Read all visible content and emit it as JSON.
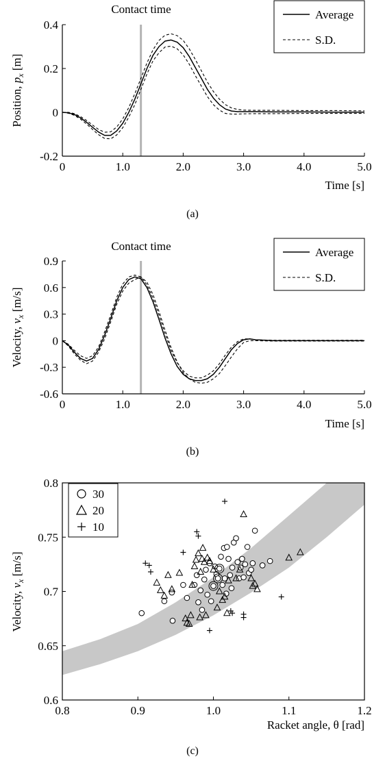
{
  "chart_data": [
    {
      "type": "line",
      "caption": "(a)",
      "annotation": "Contact time",
      "contact_time": 1.3,
      "xlabel": "Time [s]",
      "ylabel_parts": [
        "Position, ",
        "p",
        "x",
        " [m]"
      ],
      "xlim": [
        0,
        5
      ],
      "ylim": [
        -0.2,
        0.4
      ],
      "xticks": [
        0,
        1,
        2,
        3,
        4,
        5
      ],
      "xtick_labels": [
        "0",
        "1.0",
        "2.0",
        "3.0",
        "4.0",
        "5.0"
      ],
      "yticks": [
        -0.2,
        0,
        0.2,
        0.4
      ],
      "ytick_labels": [
        "-0.2",
        "0",
        "0.2",
        "0.4"
      ],
      "legend": {
        "position": "top-right",
        "entries": [
          "Average",
          "S.D."
        ]
      },
      "x": [
        0,
        0.1,
        0.2,
        0.3,
        0.4,
        0.5,
        0.6,
        0.7,
        0.8,
        0.9,
        1.0,
        1.1,
        1.2,
        1.3,
        1.4,
        1.5,
        1.6,
        1.7,
        1.8,
        1.9,
        2.0,
        2.1,
        2.2,
        2.3,
        2.4,
        2.5,
        2.6,
        2.7,
        2.8,
        2.9,
        3.0,
        3.2,
        3.5,
        4.0,
        4.5,
        5.0
      ],
      "series": [
        {
          "name": "Average",
          "style": "solid",
          "values": [
            0,
            -0.002,
            -0.01,
            -0.025,
            -0.045,
            -0.068,
            -0.09,
            -0.105,
            -0.105,
            -0.085,
            -0.05,
            0.0,
            0.06,
            0.13,
            0.2,
            0.26,
            0.3,
            0.325,
            0.33,
            0.32,
            0.295,
            0.255,
            0.205,
            0.155,
            0.105,
            0.065,
            0.035,
            0.015,
            0.006,
            0.003,
            0.003,
            0.003,
            0.002,
            0.002,
            0.001,
            0.001
          ]
        },
        {
          "name": "S.D.",
          "style": "dashed",
          "values": [
            0,
            0.0,
            -0.006,
            -0.019,
            -0.037,
            -0.058,
            -0.078,
            -0.091,
            -0.089,
            -0.067,
            -0.03,
            0.022,
            0.085,
            0.155,
            0.225,
            0.285,
            0.328,
            0.352,
            0.358,
            0.35,
            0.328,
            0.29,
            0.242,
            0.19,
            0.138,
            0.095,
            0.06,
            0.035,
            0.02,
            0.013,
            0.01,
            0.009,
            0.009,
            0.008,
            0.008,
            0.007
          ]
        },
        {
          "name": "S.D.",
          "style": "dashed",
          "values": [
            0,
            -0.004,
            -0.014,
            -0.031,
            -0.053,
            -0.078,
            -0.102,
            -0.119,
            -0.121,
            -0.103,
            -0.07,
            -0.022,
            0.035,
            0.105,
            0.175,
            0.235,
            0.272,
            0.298,
            0.302,
            0.29,
            0.262,
            0.22,
            0.168,
            0.12,
            0.072,
            0.035,
            0.01,
            -0.005,
            -0.008,
            -0.008,
            -0.007,
            -0.006,
            -0.006,
            -0.005,
            -0.005,
            -0.005
          ]
        }
      ]
    },
    {
      "type": "line",
      "caption": "(b)",
      "annotation": "Contact time",
      "contact_time": 1.3,
      "xlabel": "Time [s]",
      "ylabel_parts": [
        "Velocity, ",
        "v",
        "x",
        " [m/s]"
      ],
      "xlim": [
        0,
        5
      ],
      "ylim": [
        -0.6,
        0.9
      ],
      "xticks": [
        0,
        1,
        2,
        3,
        4,
        5
      ],
      "xtick_labels": [
        "0",
        "1.0",
        "2.0",
        "3.0",
        "4.0",
        "5.0"
      ],
      "yticks": [
        -0.6,
        -0.3,
        0,
        0.3,
        0.6,
        0.9
      ],
      "ytick_labels": [
        "-0.6",
        "-0.3",
        "0",
        "0.3",
        "0.6",
        "0.9"
      ],
      "legend": {
        "position": "top-right",
        "entries": [
          "Average",
          "S.D."
        ]
      },
      "x": [
        0,
        0.1,
        0.2,
        0.3,
        0.4,
        0.5,
        0.6,
        0.7,
        0.8,
        0.9,
        1.0,
        1.1,
        1.2,
        1.3,
        1.4,
        1.5,
        1.6,
        1.7,
        1.8,
        1.9,
        2.0,
        2.1,
        2.2,
        2.3,
        2.4,
        2.5,
        2.6,
        2.7,
        2.8,
        2.9,
        3.0,
        3.1,
        3.2,
        3.5,
        4.0,
        4.5,
        5.0
      ],
      "series": [
        {
          "name": "Average",
          "style": "solid",
          "values": [
            0,
            -0.05,
            -0.13,
            -0.2,
            -0.23,
            -0.2,
            -0.1,
            0.06,
            0.25,
            0.45,
            0.6,
            0.69,
            0.72,
            0.7,
            0.6,
            0.44,
            0.24,
            0.03,
            -0.15,
            -0.29,
            -0.38,
            -0.43,
            -0.45,
            -0.45,
            -0.43,
            -0.38,
            -0.3,
            -0.2,
            -0.1,
            -0.03,
            0.01,
            0.02,
            0.01,
            0.0,
            0.0,
            0.0,
            0.0
          ]
        },
        {
          "name": "S.D.",
          "style": "dashed",
          "values": [
            0,
            -0.04,
            -0.11,
            -0.17,
            -0.2,
            -0.17,
            -0.07,
            0.1,
            0.29,
            0.49,
            0.64,
            0.72,
            0.74,
            0.72,
            0.63,
            0.48,
            0.29,
            0.08,
            -0.11,
            -0.25,
            -0.34,
            -0.4,
            -0.42,
            -0.42,
            -0.39,
            -0.34,
            -0.26,
            -0.16,
            -0.07,
            -0.01,
            0.02,
            0.02,
            0.01,
            0.005,
            0.005,
            0.005,
            0.005
          ]
        },
        {
          "name": "S.D.",
          "style": "dashed",
          "values": [
            0,
            -0.06,
            -0.15,
            -0.22,
            -0.26,
            -0.23,
            -0.13,
            0.02,
            0.21,
            0.41,
            0.56,
            0.65,
            0.69,
            0.72,
            0.66,
            0.52,
            0.33,
            0.12,
            -0.08,
            -0.24,
            -0.36,
            -0.43,
            -0.47,
            -0.48,
            -0.47,
            -0.43,
            -0.37,
            -0.28,
            -0.18,
            -0.09,
            -0.02,
            0.0,
            0.0,
            -0.005,
            -0.005,
            -0.005,
            -0.005
          ]
        }
      ]
    },
    {
      "type": "scatter",
      "caption": "(c)",
      "xlabel": "Racket angle, θ [rad]",
      "ylabel_parts": [
        "Velocity, ",
        "v",
        "x",
        " [m/s]"
      ],
      "xlim": [
        0.8,
        1.2
      ],
      "ylim": [
        0.6,
        0.8
      ],
      "xticks": [
        0.8,
        0.9,
        1.0,
        1.1,
        1.2
      ],
      "xtick_labels": [
        "0.8",
        "0.9",
        "1.0",
        "1.1",
        "1.2"
      ],
      "yticks": [
        0.6,
        0.65,
        0.7,
        0.75,
        0.8
      ],
      "ytick_labels": [
        "0.6",
        "0.65",
        "0.7",
        "0.75",
        "0.8"
      ],
      "legend": {
        "position": "top-left",
        "entries": [
          "30",
          "20",
          "10"
        ]
      },
      "band": {
        "x": [
          0.8,
          0.85,
          0.9,
          0.95,
          1.0,
          1.05,
          1.1,
          1.15,
          1.2
        ],
        "upper": [
          0.645,
          0.656,
          0.67,
          0.69,
          0.713,
          0.74,
          0.77,
          0.8,
          0.8
        ],
        "lower": [
          0.623,
          0.633,
          0.645,
          0.66,
          0.678,
          0.699,
          0.722,
          0.75,
          0.78
        ]
      },
      "series": [
        {
          "name": "30",
          "marker": "circle",
          "points": [
            [
              0.905,
              0.68
            ],
            [
              0.935,
              0.691
            ],
            [
              0.945,
              0.699
            ],
            [
              0.946,
              0.673
            ],
            [
              0.96,
              0.706
            ],
            [
              0.965,
              0.694
            ],
            [
              0.975,
              0.706
            ],
            [
              0.978,
              0.715
            ],
            [
              0.98,
              0.69
            ],
            [
              0.983,
              0.701
            ],
            [
              0.985,
              0.683
            ],
            [
              0.988,
              0.711
            ],
            [
              0.99,
              0.72
            ],
            [
              0.992,
              0.697
            ],
            [
              0.995,
              0.726
            ],
            [
              0.997,
              0.691
            ],
            [
              1.0,
              0.705
            ],
            [
              1.002,
              0.723
            ],
            [
              1.004,
              0.716
            ],
            [
              1.006,
              0.712
            ],
            [
              1.008,
              0.721
            ],
            [
              1.01,
              0.732
            ],
            [
              1.012,
              0.706
            ],
            [
              1.014,
              0.74
            ],
            [
              1.015,
              0.712
            ],
            [
              1.017,
              0.698
            ],
            [
              1.018,
              0.741
            ],
            [
              1.02,
              0.73
            ],
            [
              1.022,
              0.715
            ],
            [
              1.024,
              0.703
            ],
            [
              1.025,
              0.722
            ],
            [
              1.027,
              0.745
            ],
            [
              1.03,
              0.749
            ],
            [
              1.032,
              0.727
            ],
            [
              1.034,
              0.712
            ],
            [
              1.036,
              0.722
            ],
            [
              1.038,
              0.73
            ],
            [
              1.04,
              0.713
            ],
            [
              1.042,
              0.725
            ],
            [
              1.045,
              0.741
            ],
            [
              1.047,
              0.717
            ],
            [
              1.05,
              0.72
            ],
            [
              1.052,
              0.726
            ],
            [
              1.055,
              0.756
            ],
            [
              1.065,
              0.724
            ],
            [
              1.075,
              0.728
            ]
          ],
          "highlight": [
            [
              1.0,
              0.705
            ],
            [
              1.006,
              0.712
            ],
            [
              1.008,
              0.721
            ]
          ]
        },
        {
          "name": "20",
          "marker": "triangle",
          "points": [
            [
              0.925,
              0.708
            ],
            [
              0.93,
              0.701
            ],
            [
              0.935,
              0.696
            ],
            [
              0.94,
              0.715
            ],
            [
              0.945,
              0.702
            ],
            [
              0.955,
              0.717
            ],
            [
              0.963,
              0.675
            ],
            [
              0.965,
              0.671
            ],
            [
              0.968,
              0.67
            ],
            [
              0.97,
              0.678
            ],
            [
              0.972,
              0.706
            ],
            [
              0.975,
              0.723
            ],
            [
              0.977,
              0.729
            ],
            [
              0.98,
              0.735
            ],
            [
              0.982,
              0.676
            ],
            [
              0.983,
              0.718
            ],
            [
              0.985,
              0.73
            ],
            [
              0.986,
              0.74
            ],
            [
              0.988,
              0.727
            ],
            [
              0.99,
              0.678
            ],
            [
              0.992,
              0.731
            ],
            [
              0.995,
              0.728
            ],
            [
              1.0,
              0.72
            ],
            [
              1.005,
              0.685
            ],
            [
              1.008,
              0.7
            ],
            [
              1.012,
              0.692
            ],
            [
              1.015,
              0.695
            ],
            [
              1.018,
              0.68
            ],
            [
              1.02,
              0.71
            ],
            [
              1.03,
              0.712
            ],
            [
              1.035,
              0.72
            ],
            [
              1.04,
              0.771
            ],
            [
              1.05,
              0.712
            ],
            [
              1.052,
              0.705
            ],
            [
              1.055,
              0.707
            ],
            [
              1.058,
              0.702
            ],
            [
              1.1,
              0.731
            ],
            [
              1.115,
              0.736
            ]
          ]
        },
        {
          "name": "10",
          "marker": "plus",
          "points": [
            [
              0.91,
              0.726
            ],
            [
              0.915,
              0.724
            ],
            [
              0.917,
              0.718
            ],
            [
              0.96,
              0.736
            ],
            [
              0.978,
              0.755
            ],
            [
              0.98,
              0.751
            ],
            [
              0.995,
              0.664
            ],
            [
              1.015,
              0.783
            ],
            [
              1.023,
              0.682
            ],
            [
              1.025,
              0.68
            ],
            [
              1.04,
              0.679
            ],
            [
              1.04,
              0.676
            ],
            [
              1.09,
              0.695
            ]
          ]
        }
      ]
    }
  ]
}
